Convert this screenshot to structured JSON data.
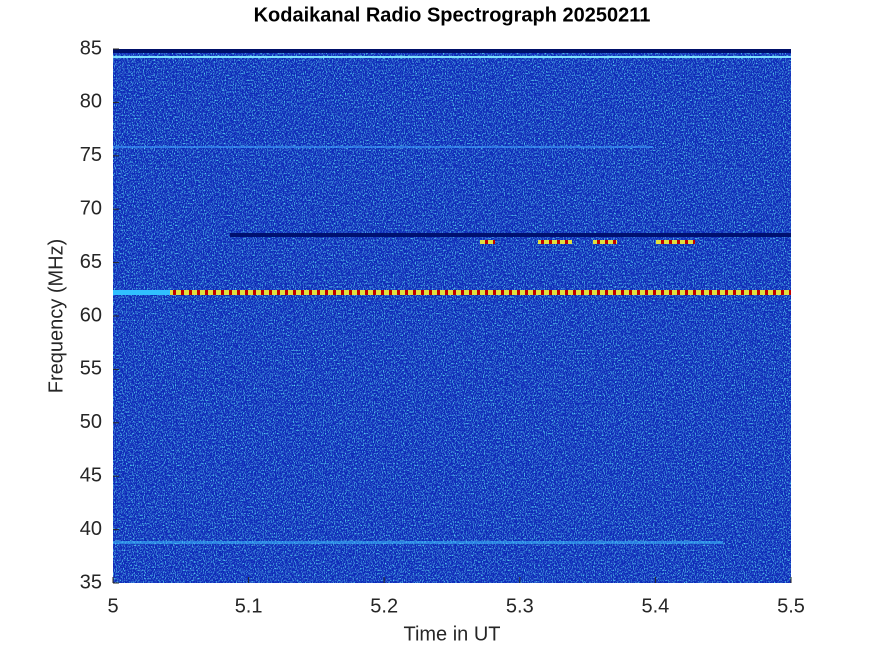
{
  "chart_data": {
    "type": "spectrogram",
    "title": "Kodaikanal Radio Spectrograph  20250211",
    "x_label": "Time in UT",
    "y_label": "Frequency (MHz)",
    "xlim": [
      5,
      5.5
    ],
    "xticks": [
      5,
      5.1,
      5.2,
      5.3,
      5.4,
      5.5
    ],
    "ylim": [
      35,
      85
    ],
    "yticks": [
      35,
      40,
      45,
      50,
      55,
      60,
      65,
      70,
      75,
      80,
      85
    ]
  }
}
